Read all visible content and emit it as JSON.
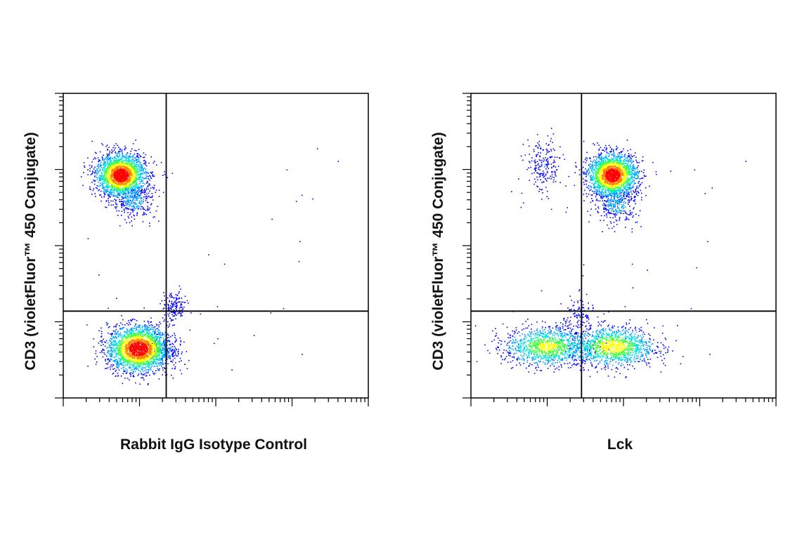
{
  "chart_data": [
    {
      "type": "scatter",
      "subtype": "flow-cytometry-density-dot-plot",
      "xlabel": "Rabbit IgG Isotype Control",
      "ylabel": "CD3 (violetFluor™ 450 Conjugate)",
      "x_scale": "log",
      "y_scale": "log",
      "xlim": [
        1,
        100000
      ],
      "ylim": [
        1,
        100000
      ],
      "gates": {
        "x": 1.35,
        "y": 1.14
      },
      "density_colors": [
        "#0000ff",
        "#00a0ff",
        "#00e0e0",
        "#40ff40",
        "#ffff00",
        "#ff8000",
        "#ff0000"
      ],
      "populations": [
        {
          "cx": 0.75,
          "cy": 2.93,
          "sx": 0.16,
          "sy": 0.14,
          "weight": 0.42
        },
        {
          "cx": 0.92,
          "cy": 2.6,
          "sx": 0.14,
          "sy": 0.12,
          "weight": 0.06
        },
        {
          "cx": 0.98,
          "cy": 0.65,
          "sx": 0.2,
          "sy": 0.15,
          "weight": 0.46
        },
        {
          "cx": 1.45,
          "cy": 1.2,
          "sx": 0.08,
          "sy": 0.1,
          "weight": 0.03
        },
        {
          "cx": 1.3,
          "cy": 0.65,
          "sx": 0.12,
          "sy": 0.14,
          "weight": 0.03
        }
      ]
    },
    {
      "type": "scatter",
      "subtype": "flow-cytometry-density-dot-plot",
      "xlabel": "Lck",
      "ylabel": "CD3 (violetFluor™ 450 Conjugate)",
      "x_scale": "log",
      "y_scale": "log",
      "xlim": [
        1,
        100000
      ],
      "ylim": [
        1,
        100000
      ],
      "gates": {
        "x": 1.45,
        "y": 1.14
      },
      "density_colors": [
        "#0000ff",
        "#00a0ff",
        "#00e0e0",
        "#40ff40",
        "#ffff00",
        "#ff8000",
        "#ff0000"
      ],
      "populations": [
        {
          "cx": 1.85,
          "cy": 2.93,
          "sx": 0.16,
          "sy": 0.14,
          "weight": 0.42
        },
        {
          "cx": 1.9,
          "cy": 2.55,
          "sx": 0.14,
          "sy": 0.13,
          "weight": 0.06
        },
        {
          "cx": 1.0,
          "cy": 0.68,
          "sx": 0.28,
          "sy": 0.13,
          "weight": 0.22
        },
        {
          "cx": 1.85,
          "cy": 0.68,
          "sx": 0.28,
          "sy": 0.13,
          "weight": 0.24
        },
        {
          "cx": 0.95,
          "cy": 3.05,
          "sx": 0.12,
          "sy": 0.18,
          "weight": 0.04
        },
        {
          "cx": 1.4,
          "cy": 1.1,
          "sx": 0.1,
          "sy": 0.12,
          "weight": 0.02
        }
      ]
    }
  ]
}
